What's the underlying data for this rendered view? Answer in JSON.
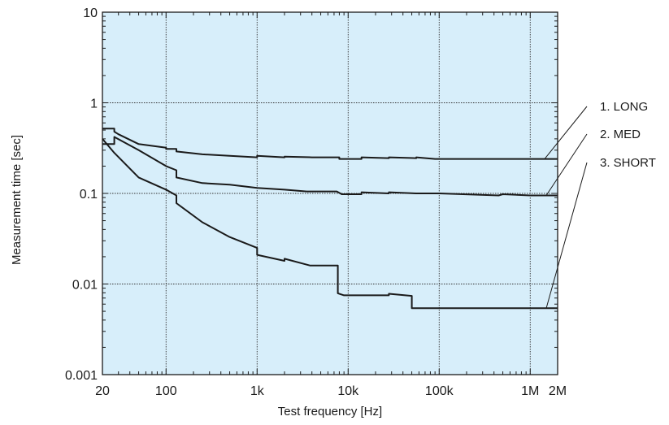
{
  "chart_data": {
    "type": "line",
    "title": "",
    "xlabel": "Test frequency [Hz]",
    "ylabel": "Measurement time [sec]",
    "x_scale": "log",
    "y_scale": "log",
    "xlim": [
      20,
      2000000
    ],
    "ylim": [
      0.001,
      10
    ],
    "grid": true,
    "legend_placement": "right, outside plot with leader lines",
    "x_ticks": [
      {
        "value": 20,
        "label": "20"
      },
      {
        "value": 100,
        "label": "100"
      },
      {
        "value": 1000,
        "label": "1k"
      },
      {
        "value": 10000,
        "label": "10k"
      },
      {
        "value": 100000,
        "label": "100k"
      },
      {
        "value": 1000000,
        "label": "1M"
      },
      {
        "value": 2000000,
        "label": "2M"
      }
    ],
    "y_ticks": [
      {
        "value": 10,
        "label": "10"
      },
      {
        "value": 1,
        "label": "1"
      },
      {
        "value": 0.1,
        "label": "0.1"
      },
      {
        "value": 0.01,
        "label": "0.01"
      },
      {
        "value": 0.001,
        "label": "0.001"
      }
    ],
    "series": [
      {
        "name": "1. LONG",
        "x": [
          20,
          27,
          27,
          30,
          50,
          100,
          100,
          130,
          130,
          250,
          500,
          1000,
          1000,
          2000,
          2000,
          4000,
          8000,
          8000,
          14000,
          14000,
          28000,
          28000,
          56000,
          56000,
          90000,
          500000,
          500000,
          2000000
        ],
        "y": [
          0.52,
          0.52,
          0.48,
          0.45,
          0.35,
          0.32,
          0.31,
          0.31,
          0.29,
          0.27,
          0.26,
          0.25,
          0.26,
          0.25,
          0.255,
          0.25,
          0.25,
          0.24,
          0.24,
          0.25,
          0.245,
          0.25,
          0.245,
          0.25,
          0.24,
          0.24,
          0.24,
          0.24
        ],
        "color": "#1a1a1a"
      },
      {
        "name": "2. MED",
        "x": [
          20,
          27,
          27,
          50,
          100,
          130,
          130,
          250,
          500,
          1000,
          2000,
          3500,
          7500,
          8500,
          14000,
          14000,
          28000,
          28000,
          56000,
          100000,
          450000,
          500000,
          1000000,
          2000000
        ],
        "y": [
          0.35,
          0.35,
          0.42,
          0.3,
          0.2,
          0.18,
          0.15,
          0.13,
          0.125,
          0.115,
          0.11,
          0.105,
          0.105,
          0.098,
          0.098,
          0.103,
          0.1,
          0.103,
          0.1,
          0.1,
          0.095,
          0.098,
          0.095,
          0.095
        ],
        "color": "#1a1a1a"
      },
      {
        "name": "3. SHORT",
        "x": [
          20,
          27,
          50,
          100,
          130,
          130,
          250,
          500,
          1000,
          1000,
          2000,
          2000,
          3800,
          7700,
          7700,
          9000,
          15000,
          28000,
          28000,
          50000,
          50000,
          2000000
        ],
        "y": [
          0.4,
          0.28,
          0.15,
          0.11,
          0.095,
          0.078,
          0.048,
          0.033,
          0.025,
          0.021,
          0.018,
          0.019,
          0.016,
          0.016,
          0.0079,
          0.0075,
          0.0075,
          0.0075,
          0.0078,
          0.0074,
          0.0054,
          0.0054
        ],
        "color": "#1a1a1a"
      }
    ]
  },
  "style": {
    "plot_background": "#d7eefa",
    "line_color": "#1a1a1a",
    "grid_color": "#333333"
  }
}
